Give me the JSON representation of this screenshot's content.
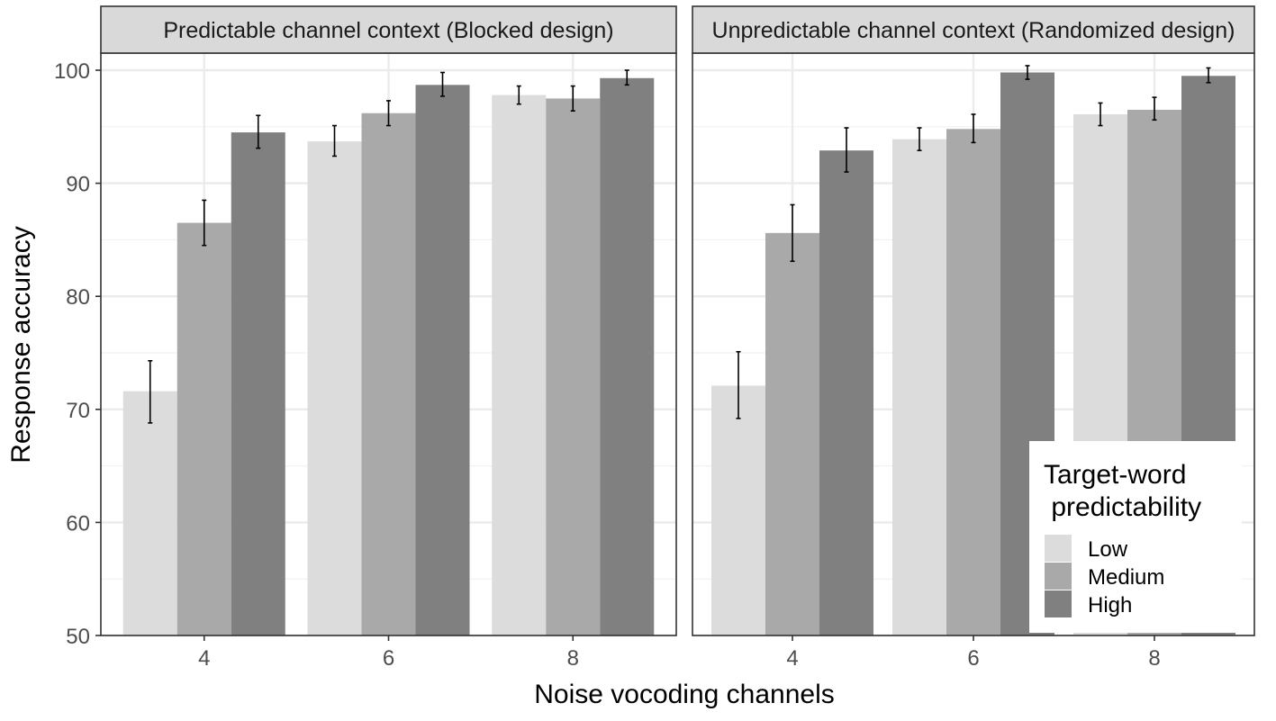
{
  "chart_data": {
    "type": "bar",
    "xlabel": "Noise vocoding channels",
    "ylabel": "Response accuracy",
    "ylim": [
      50,
      100
    ],
    "yticks": [
      50,
      60,
      70,
      80,
      90,
      100
    ],
    "categories": [
      "4",
      "6",
      "8"
    ],
    "grid": true,
    "legend": {
      "title_lines": [
        "Target-word",
        " predictability"
      ],
      "placement": "bottom-right inside second panel"
    },
    "series": [
      {
        "name": "Low",
        "color": "#dcdcdc"
      },
      {
        "name": "Medium",
        "color": "#a9a9a9"
      },
      {
        "name": "High",
        "color": "#808080"
      }
    ],
    "panels": [
      {
        "title": "Predictable channel context (Blocked design)",
        "values": [
          [
            71.6,
            86.5,
            94.5
          ],
          [
            93.7,
            96.2,
            98.7
          ],
          [
            97.8,
            97.5,
            99.3
          ]
        ],
        "errors": [
          [
            68.8,
            74.3,
            84.5,
            88.5,
            93.1,
            96.0
          ],
          [
            92.4,
            95.1,
            95.1,
            97.3,
            97.7,
            99.8
          ],
          [
            97.0,
            98.6,
            96.4,
            98.6,
            98.7,
            100.0
          ]
        ]
      },
      {
        "title": "Unpredictable channel context (Randomized design)",
        "values": [
          [
            72.1,
            85.6,
            92.9
          ],
          [
            93.9,
            94.8,
            99.8
          ],
          [
            96.1,
            96.5,
            99.5
          ]
        ],
        "errors": [
          [
            69.2,
            75.1,
            83.1,
            88.1,
            91.0,
            94.9
          ],
          [
            92.9,
            94.9,
            93.6,
            96.1,
            99.2,
            100.4
          ],
          [
            95.1,
            97.1,
            95.6,
            97.6,
            98.9,
            100.2
          ]
        ]
      }
    ]
  }
}
